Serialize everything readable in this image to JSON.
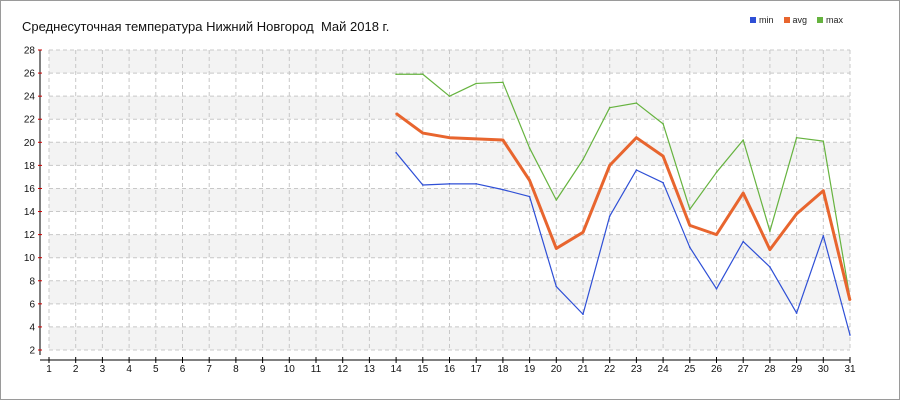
{
  "chart_data": {
    "type": "line",
    "title": "Среднесуточная температура Нижний Новгород  Май 2018 г.",
    "xlabel": "",
    "ylabel": "",
    "x": [
      1,
      2,
      3,
      4,
      5,
      6,
      7,
      8,
      9,
      10,
      11,
      12,
      13,
      14,
      15,
      16,
      17,
      18,
      19,
      20,
      21,
      22,
      23,
      24,
      25,
      26,
      27,
      28,
      29,
      30,
      31
    ],
    "xlim": [
      1,
      31
    ],
    "ylim": [
      2,
      28
    ],
    "yticks": [
      2,
      4,
      6,
      8,
      10,
      12,
      14,
      16,
      18,
      20,
      22,
      24,
      26,
      28
    ],
    "grid": true,
    "legend_position": "top-right",
    "series": [
      {
        "name": "min",
        "color": "#2e4fd6",
        "x": [
          14,
          15,
          16,
          17,
          18,
          19,
          20,
          21,
          22,
          23,
          24,
          25,
          26,
          27,
          28,
          29,
          30,
          31
        ],
        "values": [
          19.1,
          16.3,
          16.4,
          16.4,
          15.9,
          15.3,
          7.5,
          5.1,
          13.6,
          17.6,
          16.5,
          10.9,
          7.3,
          11.4,
          9.2,
          5.2,
          11.9,
          3.3
        ]
      },
      {
        "name": "avg",
        "color": "#e8652e",
        "x": [
          14,
          15,
          16,
          17,
          18,
          19,
          20,
          21,
          22,
          23,
          24,
          25,
          26,
          27,
          28,
          29,
          30,
          31
        ],
        "values": [
          22.5,
          20.8,
          20.4,
          20.3,
          20.2,
          16.7,
          10.8,
          12.2,
          18.0,
          20.4,
          18.8,
          12.8,
          12.0,
          15.6,
          10.7,
          13.8,
          15.8,
          6.3
        ]
      },
      {
        "name": "max",
        "color": "#66b33f",
        "x": [
          14,
          15,
          16,
          17,
          18,
          19,
          20,
          21,
          22,
          23,
          24,
          25,
          26,
          27,
          28,
          29,
          30,
          31
        ],
        "values": [
          25.9,
          25.9,
          24.0,
          25.1,
          25.2,
          19.5,
          15.0,
          18.5,
          23.0,
          23.4,
          21.6,
          14.2,
          17.4,
          20.2,
          12.3,
          20.4,
          20.1,
          6.5
        ]
      }
    ]
  }
}
